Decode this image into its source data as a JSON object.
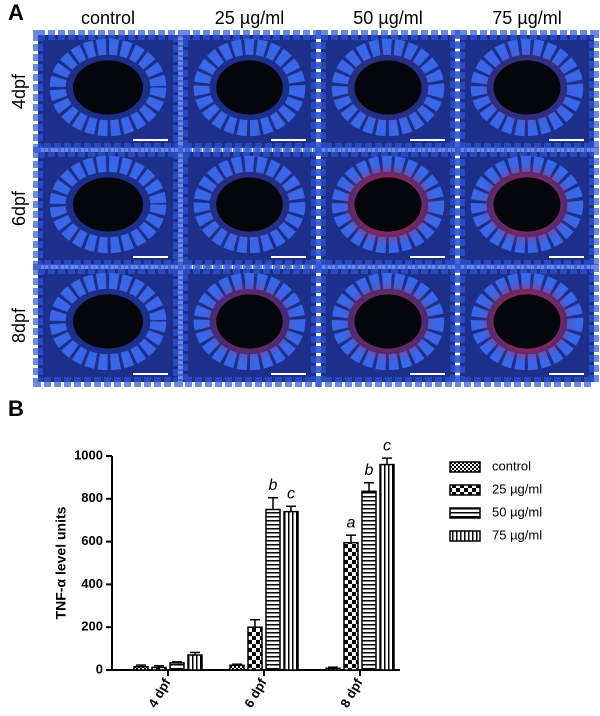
{
  "panel_a": {
    "label": "A",
    "columns": [
      "control",
      "25 µg/ml",
      "50 µg/ml",
      "75 µg/ml"
    ],
    "rows": [
      "4dpf",
      "6dpf",
      "8dpf"
    ]
  },
  "chart_data": {
    "type": "bar",
    "panel_label": "B",
    "ylabel": "TNF-α level units",
    "categories": [
      "4 dpf",
      "6 dpf",
      "8 dpf"
    ],
    "series": [
      {
        "name": "control",
        "color": "#000000",
        "pattern": "fine-checker",
        "values": [
          15,
          22,
          8
        ],
        "errors": [
          8,
          5,
          5
        ],
        "letters": [
          null,
          null,
          null
        ]
      },
      {
        "name": "25 µg/ml",
        "color": "#000000",
        "pattern": "checker",
        "values": [
          12,
          200,
          595
        ],
        "errors": [
          8,
          35,
          35
        ],
        "letters": [
          null,
          null,
          "a"
        ]
      },
      {
        "name": "50 µg/ml",
        "color": "#000000",
        "pattern": "hlines",
        "values": [
          33,
          750,
          835
        ],
        "errors": [
          5,
          55,
          40
        ],
        "letters": [
          null,
          "b",
          "b"
        ]
      },
      {
        "name": "75 µg/ml",
        "color": "#000000",
        "pattern": "vlines",
        "values": [
          70,
          740,
          960
        ],
        "errors": [
          12,
          25,
          30
        ],
        "letters": [
          null,
          "c",
          "c"
        ]
      }
    ],
    "ylim": [
      0,
      1000
    ],
    "yticks": [
      0,
      200,
      400,
      600,
      800,
      1000
    ],
    "grid": false,
    "legend": "right"
  }
}
